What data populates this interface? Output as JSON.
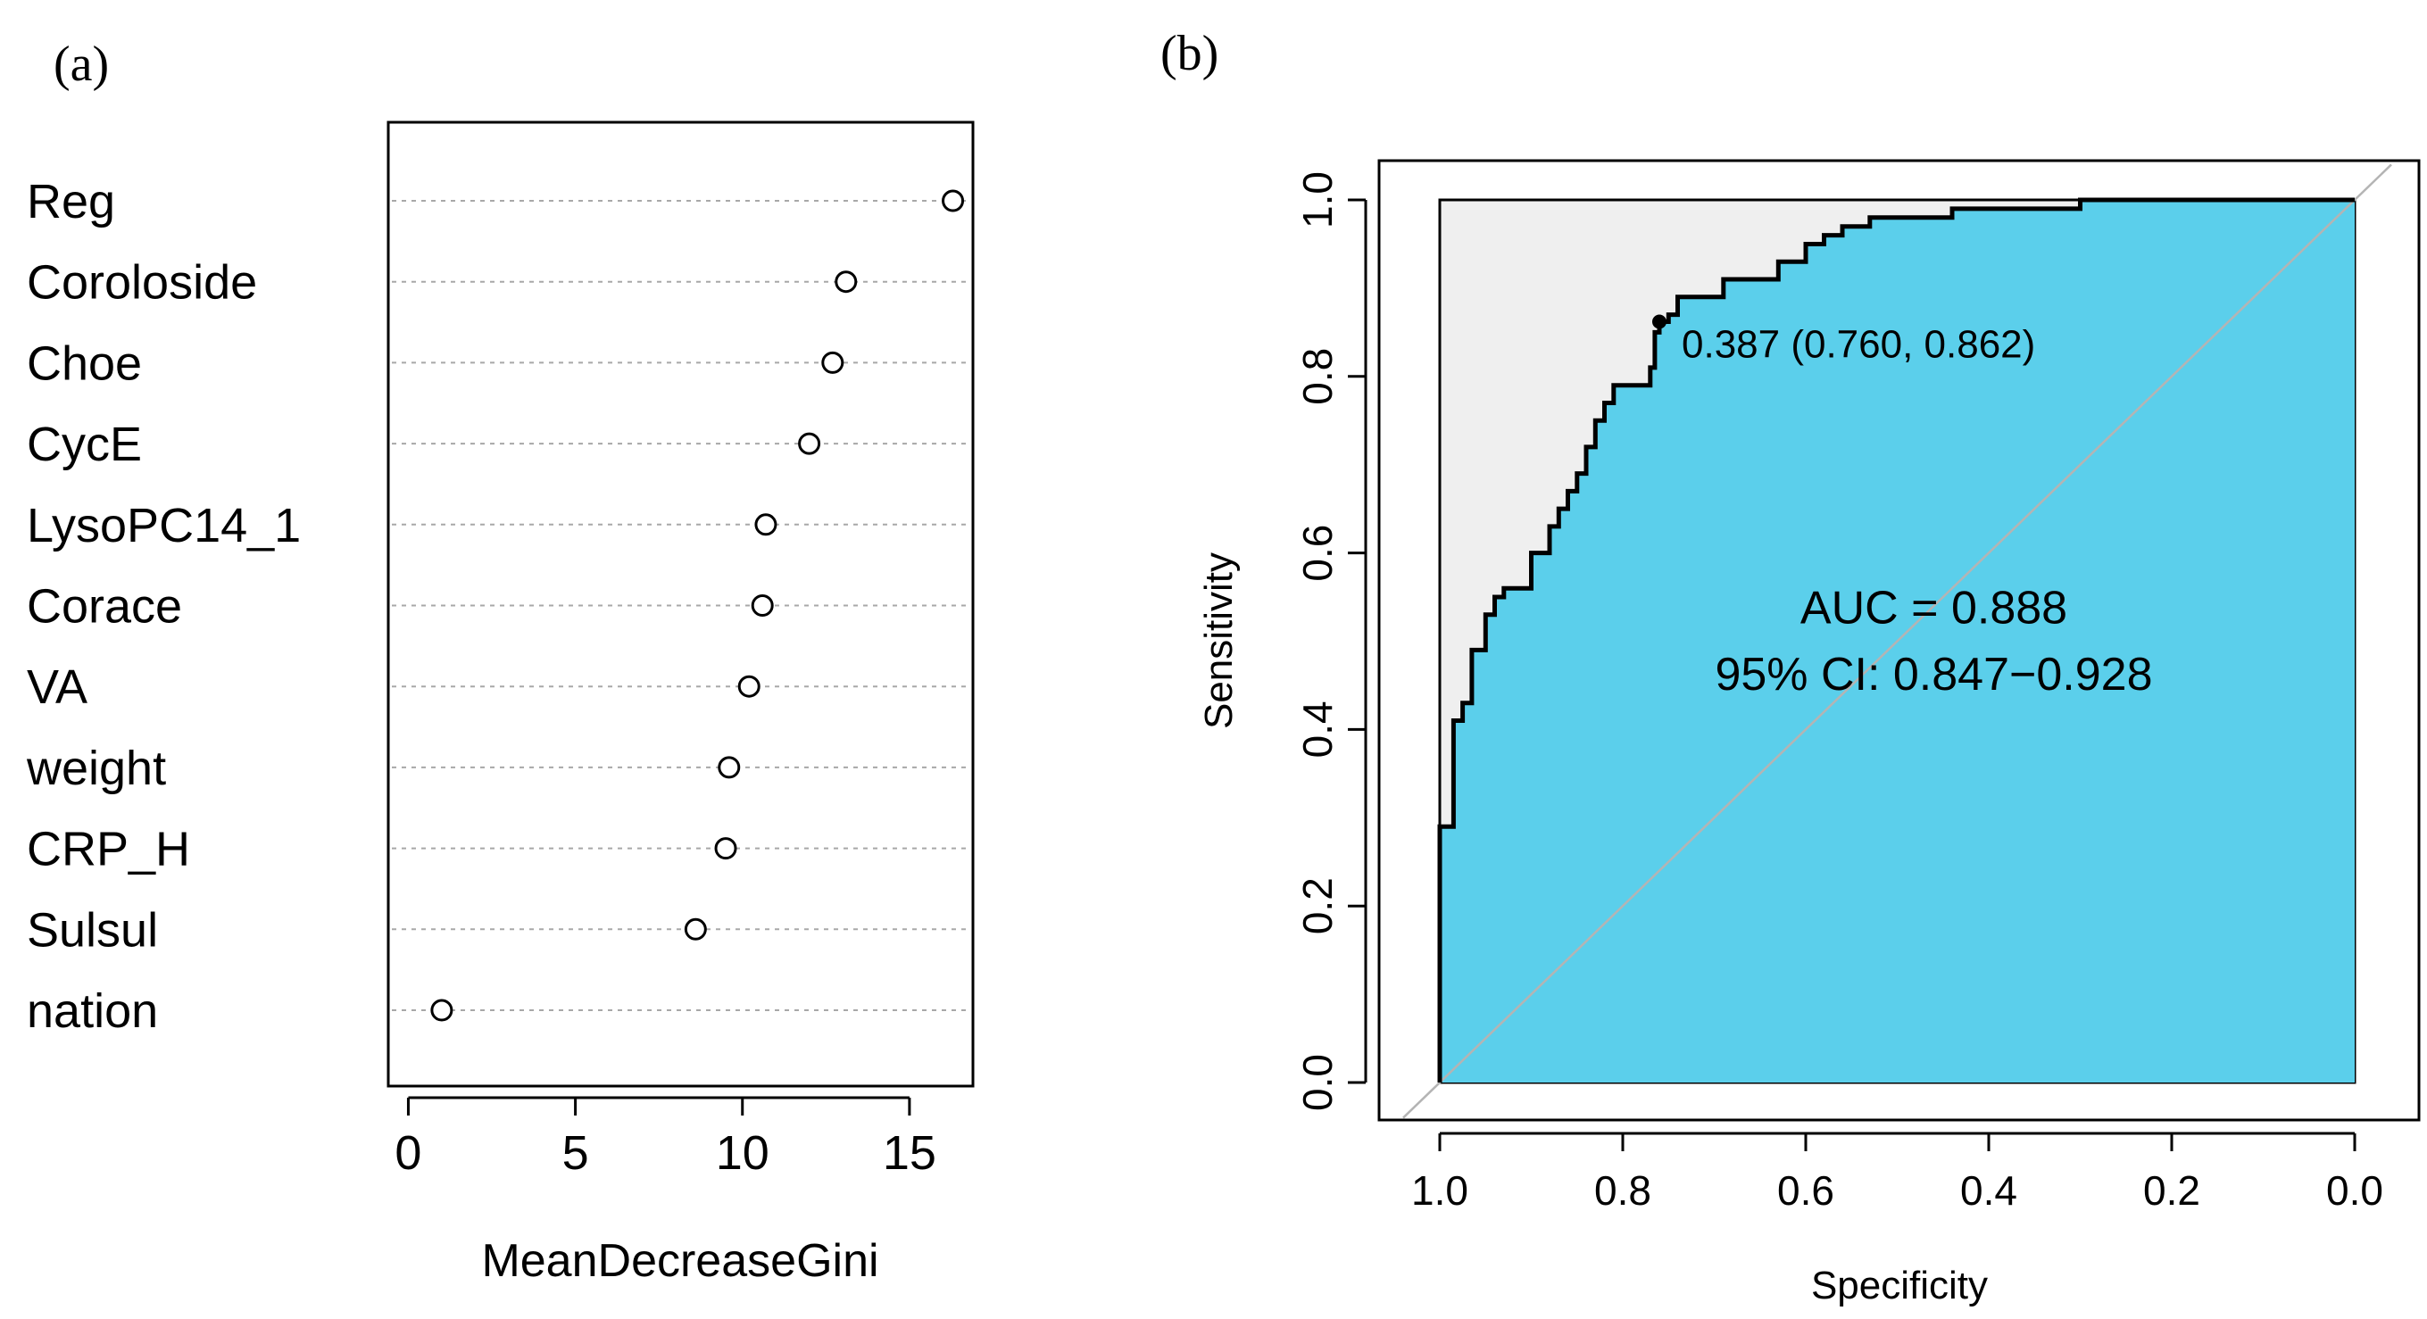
{
  "chart_data": [
    {
      "type": "scatter",
      "panel_label": "(a)",
      "xlabel": "MeanDecreaseGini",
      "ylabel": "",
      "xlim": [
        -0.6,
        16.9
      ],
      "xticks": [
        "0",
        "5",
        "10",
        "15"
      ],
      "grid": "horizontal-dotted",
      "categories": [
        "Reg",
        "Coroloside",
        "Choe",
        "CycE",
        "LysoPC14_1",
        "Corace",
        "VA",
        "weight",
        "CRP_H",
        "Sulsul",
        "nation"
      ],
      "values": [
        16.3,
        13.1,
        12.7,
        12.0,
        10.7,
        10.6,
        10.2,
        9.6,
        9.5,
        8.6,
        1.0
      ]
    },
    {
      "type": "area",
      "panel_label": "(b)",
      "title": "",
      "xlabel": "Specificity",
      "ylabel": "Sensitivity",
      "xlim": [
        1.0,
        0.0
      ],
      "ylim": [
        0.0,
        1.0
      ],
      "xticks": [
        "1.0",
        "0.8",
        "0.6",
        "0.4",
        "0.2",
        "0.0"
      ],
      "yticks": [
        "0.0",
        "0.2",
        "0.4",
        "0.6",
        "0.8",
        "1.0"
      ],
      "fill_color": "#5bcfeb",
      "ci_fill_color": "#efefef",
      "threshold_label": "0.387 (0.760, 0.862)",
      "threshold_point": [
        0.76,
        0.862
      ],
      "auc_text": "AUC = 0.888",
      "ci_text": "95% CI: 0.847−0.928",
      "roc_curve": [
        [
          1.0,
          0.0
        ],
        [
          1.0,
          0.29
        ],
        [
          0.985,
          0.29
        ],
        [
          0.985,
          0.41
        ],
        [
          0.975,
          0.41
        ],
        [
          0.975,
          0.43
        ],
        [
          0.965,
          0.43
        ],
        [
          0.965,
          0.49
        ],
        [
          0.95,
          0.49
        ],
        [
          0.95,
          0.53
        ],
        [
          0.94,
          0.53
        ],
        [
          0.94,
          0.55
        ],
        [
          0.93,
          0.55
        ],
        [
          0.93,
          0.56
        ],
        [
          0.9,
          0.56
        ],
        [
          0.9,
          0.6
        ],
        [
          0.88,
          0.6
        ],
        [
          0.88,
          0.63
        ],
        [
          0.87,
          0.63
        ],
        [
          0.87,
          0.65
        ],
        [
          0.86,
          0.65
        ],
        [
          0.86,
          0.67
        ],
        [
          0.85,
          0.67
        ],
        [
          0.85,
          0.69
        ],
        [
          0.84,
          0.69
        ],
        [
          0.84,
          0.72
        ],
        [
          0.83,
          0.72
        ],
        [
          0.83,
          0.75
        ],
        [
          0.82,
          0.75
        ],
        [
          0.82,
          0.77
        ],
        [
          0.81,
          0.77
        ],
        [
          0.81,
          0.79
        ],
        [
          0.77,
          0.79
        ],
        [
          0.77,
          0.81
        ],
        [
          0.765,
          0.81
        ],
        [
          0.765,
          0.85
        ],
        [
          0.76,
          0.85
        ],
        [
          0.76,
          0.862
        ],
        [
          0.75,
          0.862
        ],
        [
          0.75,
          0.87
        ],
        [
          0.74,
          0.87
        ],
        [
          0.74,
          0.89
        ],
        [
          0.69,
          0.89
        ],
        [
          0.69,
          0.91
        ],
        [
          0.63,
          0.91
        ],
        [
          0.63,
          0.93
        ],
        [
          0.6,
          0.93
        ],
        [
          0.6,
          0.95
        ],
        [
          0.58,
          0.95
        ],
        [
          0.58,
          0.96
        ],
        [
          0.56,
          0.96
        ],
        [
          0.56,
          0.97
        ],
        [
          0.53,
          0.97
        ],
        [
          0.53,
          0.98
        ],
        [
          0.44,
          0.98
        ],
        [
          0.44,
          0.99
        ],
        [
          0.3,
          0.99
        ],
        [
          0.3,
          1.0
        ],
        [
          0.0,
          1.0
        ]
      ],
      "ci_upper": [
        [
          1.0,
          0.0
        ],
        [
          1.0,
          1.0
        ],
        [
          0.0,
          1.0
        ]
      ]
    }
  ]
}
